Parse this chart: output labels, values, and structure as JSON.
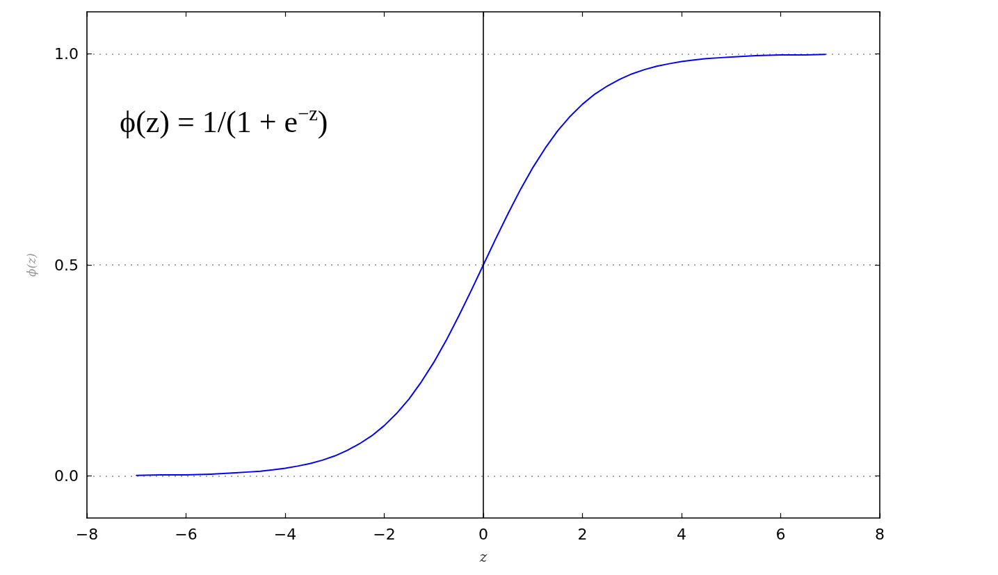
{
  "chart_data": {
    "type": "line",
    "xlabel": "z",
    "ylabel": "ϕ(z)",
    "annotations": [
      "ϕ(z) = 1/(1 + e$^{−z}$)"
    ],
    "x": [
      -7,
      -6.5,
      -6,
      -5.5,
      -5,
      -4.75,
      -4.5,
      -4.25,
      -4,
      -3.75,
      -3.5,
      -3.25,
      -3,
      -2.75,
      -2.5,
      -2.25,
      -2,
      -1.75,
      -1.5,
      -1.25,
      -1,
      -0.75,
      -0.5,
      -0.25,
      0,
      0.25,
      0.5,
      0.75,
      1,
      1.25,
      1.5,
      1.75,
      2,
      2.25,
      2.5,
      2.75,
      3,
      3.25,
      3.5,
      3.75,
      4,
      4.25,
      4.5,
      4.75,
      5,
      5.5,
      6,
      6.5,
      6.9
    ],
    "series": [
      {
        "color": "#0000ff",
        "values": [
          0.001,
          0.002,
          0.002,
          0.004,
          0.007,
          0.009,
          0.011,
          0.014,
          0.018,
          0.023,
          0.029,
          0.037,
          0.047,
          0.06,
          0.076,
          0.095,
          0.119,
          0.148,
          0.182,
          0.223,
          0.269,
          0.321,
          0.378,
          0.438,
          0.5,
          0.562,
          0.622,
          0.679,
          0.731,
          0.777,
          0.818,
          0.852,
          0.881,
          0.905,
          0.924,
          0.94,
          0.953,
          0.963,
          0.971,
          0.977,
          0.982,
          0.986,
          0.989,
          0.991,
          0.993,
          0.996,
          0.998,
          0.998,
          0.999
        ]
      }
    ],
    "xlim": [
      -8,
      8
    ],
    "xticks": [
      {
        "value": -8,
        "label": "−8"
      },
      {
        "value": -6,
        "label": "−6"
      },
      {
        "value": -4,
        "label": "−4"
      },
      {
        "value": -2,
        "label": "−2"
      },
      0,
      2,
      4,
      6,
      8
    ],
    "ylim": [
      -0.1,
      1.1
    ],
    "yticks": [
      {
        "value": 0,
        "label": "0.0"
      },
      0.5,
      {
        "value": 1,
        "label": "1.0"
      }
    ],
    "grid": "y",
    "marker": "none",
    "line_style": "solid",
    "ref_lines": [
      {
        "axis": "x",
        "value": 0,
        "color": "#000000"
      }
    ]
  }
}
